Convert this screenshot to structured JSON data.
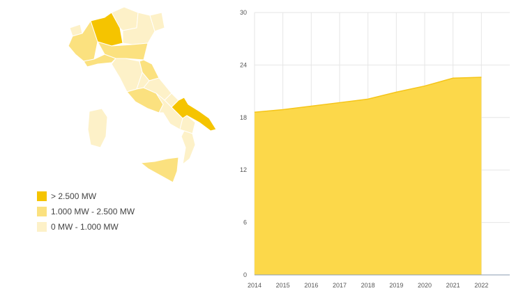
{
  "chart_data": {
    "type": "area",
    "x": [
      2014,
      2015,
      2016,
      2017,
      2018,
      2019,
      2020,
      2021,
      2022
    ],
    "values": [
      18.6,
      18.9,
      19.3,
      19.7,
      20.1,
      20.9,
      21.6,
      22.5,
      22.6
    ],
    "color": "#fcd84a",
    "line_color": "#f5c518",
    "xlim": [
      2014,
      2023
    ],
    "xticks": [
      2014,
      2015,
      2016,
      2017,
      2018,
      2019,
      2020,
      2021,
      2022
    ],
    "ylim": [
      0,
      30
    ],
    "yticks": [
      0,
      6,
      12,
      18,
      24,
      30
    ],
    "grid": true
  },
  "map_legend": [
    {
      "label": "> 2.500 MW",
      "color": "#f5c400"
    },
    {
      "label": "1.000 MW - 2.500 MW",
      "color": "#fbe17f"
    },
    {
      "label": "0 MW - 1.000 MW",
      "color": "#fdf1c8"
    }
  ]
}
